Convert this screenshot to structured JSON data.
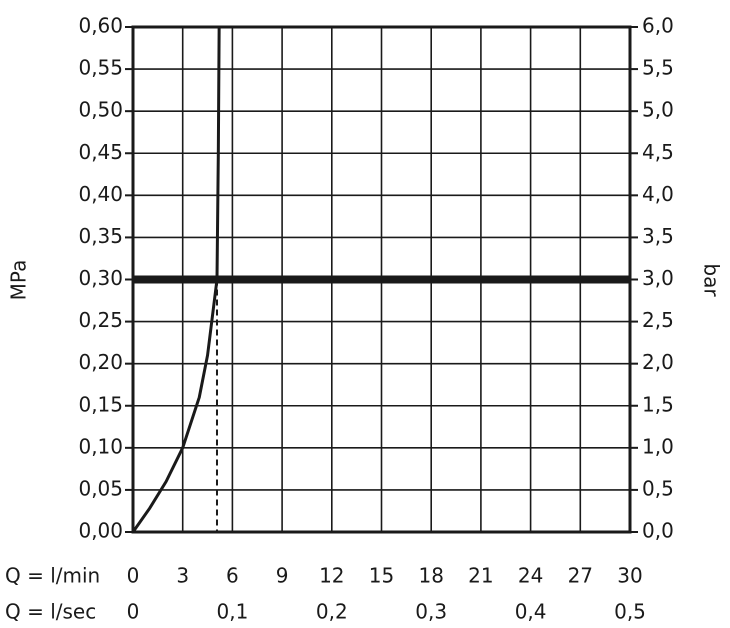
{
  "chart_data": {
    "type": "line",
    "xlabel": "Q = l/min",
    "x2label": "Q = l/sec",
    "ylabel": "MPa",
    "y2label": "bar",
    "xlim": [
      0,
      30
    ],
    "xticks": [
      0,
      3,
      6,
      9,
      12,
      15,
      18,
      21,
      24,
      27,
      30
    ],
    "x2lim": [
      0,
      0.5
    ],
    "x2ticks": [
      0,
      {
        "value": 0.1,
        "label": "0,1"
      },
      {
        "value": 0.2,
        "label": "0,2"
      },
      {
        "value": 0.3,
        "label": "0,3"
      },
      {
        "value": 0.4,
        "label": "0,4"
      },
      {
        "value": 0.5,
        "label": "0,5"
      }
    ],
    "ylim": [
      0,
      0.6
    ],
    "yticks": [
      {
        "value": 0,
        "label": "0,00"
      },
      {
        "value": 0.05,
        "label": "0,05"
      },
      {
        "value": 0.1,
        "label": "0,10"
      },
      {
        "value": 0.15,
        "label": "0,15"
      },
      {
        "value": 0.2,
        "label": "0,20"
      },
      {
        "value": 0.25,
        "label": "0,25"
      },
      {
        "value": 0.3,
        "label": "0,30"
      },
      {
        "value": 0.35,
        "label": "0,35"
      },
      {
        "value": 0.4,
        "label": "0,40"
      },
      {
        "value": 0.45,
        "label": "0,45"
      },
      {
        "value": 0.5,
        "label": "0,50"
      },
      {
        "value": 0.55,
        "label": "0,55"
      },
      {
        "value": 0.6,
        "label": "0,60"
      }
    ],
    "y2lim": [
      0,
      6
    ],
    "y2ticks": [
      {
        "value": 0,
        "label": "0,0"
      },
      {
        "value": 0.5,
        "label": "0,5"
      },
      {
        "value": 1,
        "label": "1,0"
      },
      {
        "value": 1.5,
        "label": "1,5"
      },
      {
        "value": 2,
        "label": "2,0"
      },
      {
        "value": 2.5,
        "label": "2,5"
      },
      {
        "value": 3,
        "label": "3,0"
      },
      {
        "value": 3.5,
        "label": "3,5"
      },
      {
        "value": 4,
        "label": "4,0"
      },
      {
        "value": 4.5,
        "label": "4,5"
      },
      {
        "value": 5,
        "label": "5,0"
      },
      {
        "value": 5.5,
        "label": "5,5"
      },
      {
        "value": 6,
        "label": "6,0"
      }
    ],
    "grid": true,
    "series": [
      {
        "color": "#1a1a1a",
        "x": [
          0,
          1,
          2,
          3,
          4,
          4.5,
          5.07,
          5.15,
          5.2
        ],
        "values": [
          0,
          0.028,
          0.06,
          0.1,
          0.16,
          0.21,
          0.3,
          0.45,
          0.6
        ]
      }
    ],
    "reference_line_y": 0.3,
    "reference_point": {
      "x": 5.07,
      "y": 0.3
    }
  }
}
